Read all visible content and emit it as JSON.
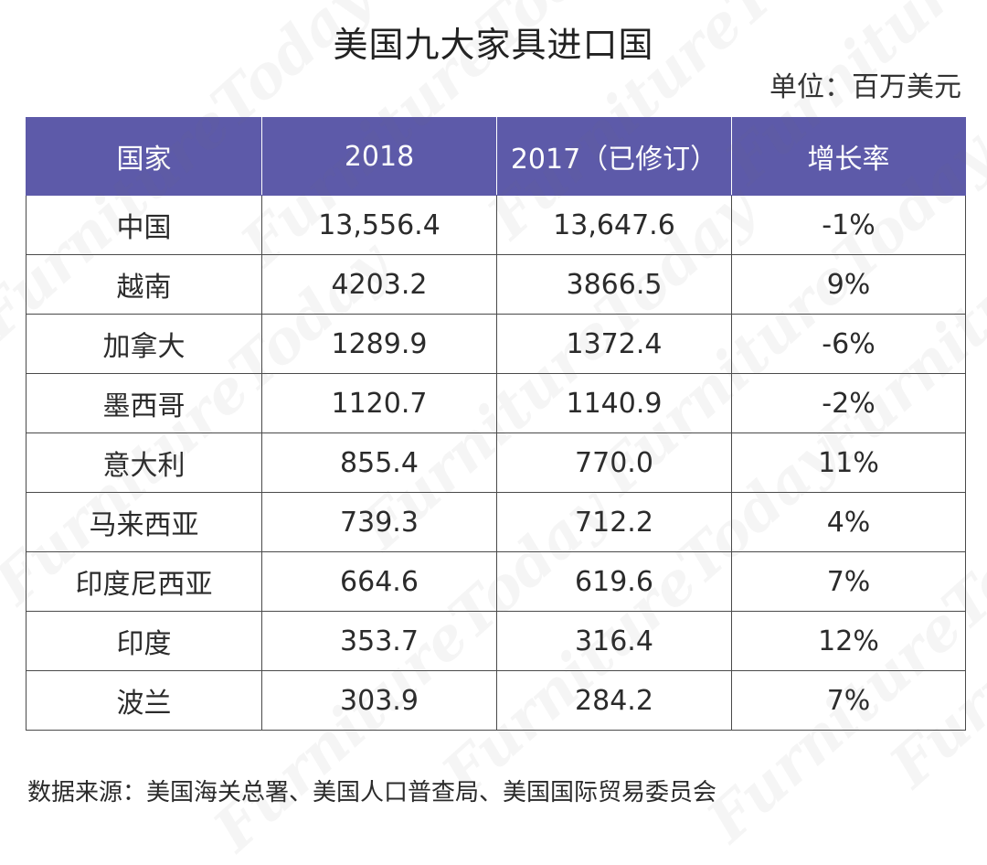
{
  "title": "美国九大家具进口国",
  "unit": "单位：百万美元",
  "source": "数据来源：美国海关总署、美国人口普查局、美国国际贸易委员会",
  "watermark": "FurnitureToday",
  "colors": {
    "header_bg": "#5d5aa9",
    "header_text": "#ffffff",
    "grid": "#4a4a4a"
  },
  "chart_data": {
    "type": "table",
    "title": "美国九大家具进口国",
    "unit": "单位：百万美元",
    "columns": [
      "国家",
      "2018",
      "2017（已修订）",
      "增长率"
    ],
    "rows": [
      [
        "中国",
        "13,556.4",
        "13,647.6",
        "-1%"
      ],
      [
        "越南",
        "4203.2",
        "3866.5",
        "9%"
      ],
      [
        "加拿大",
        "1289.9",
        "1372.4",
        "-6%"
      ],
      [
        "墨西哥",
        "1120.7",
        "1140.9",
        "-2%"
      ],
      [
        "意大利",
        "855.4",
        "770.0",
        "11%"
      ],
      [
        "马来西亚",
        "739.3",
        "712.2",
        "4%"
      ],
      [
        "印度尼西亚",
        "664.6",
        "619.6",
        "7%"
      ],
      [
        "印度",
        "353.7",
        "316.4",
        "12%"
      ],
      [
        "波兰",
        "303.9",
        "284.2",
        "7%"
      ]
    ],
    "source": "数据来源：美国海关总署、美国人口普查局、美国国际贸易委员会"
  }
}
